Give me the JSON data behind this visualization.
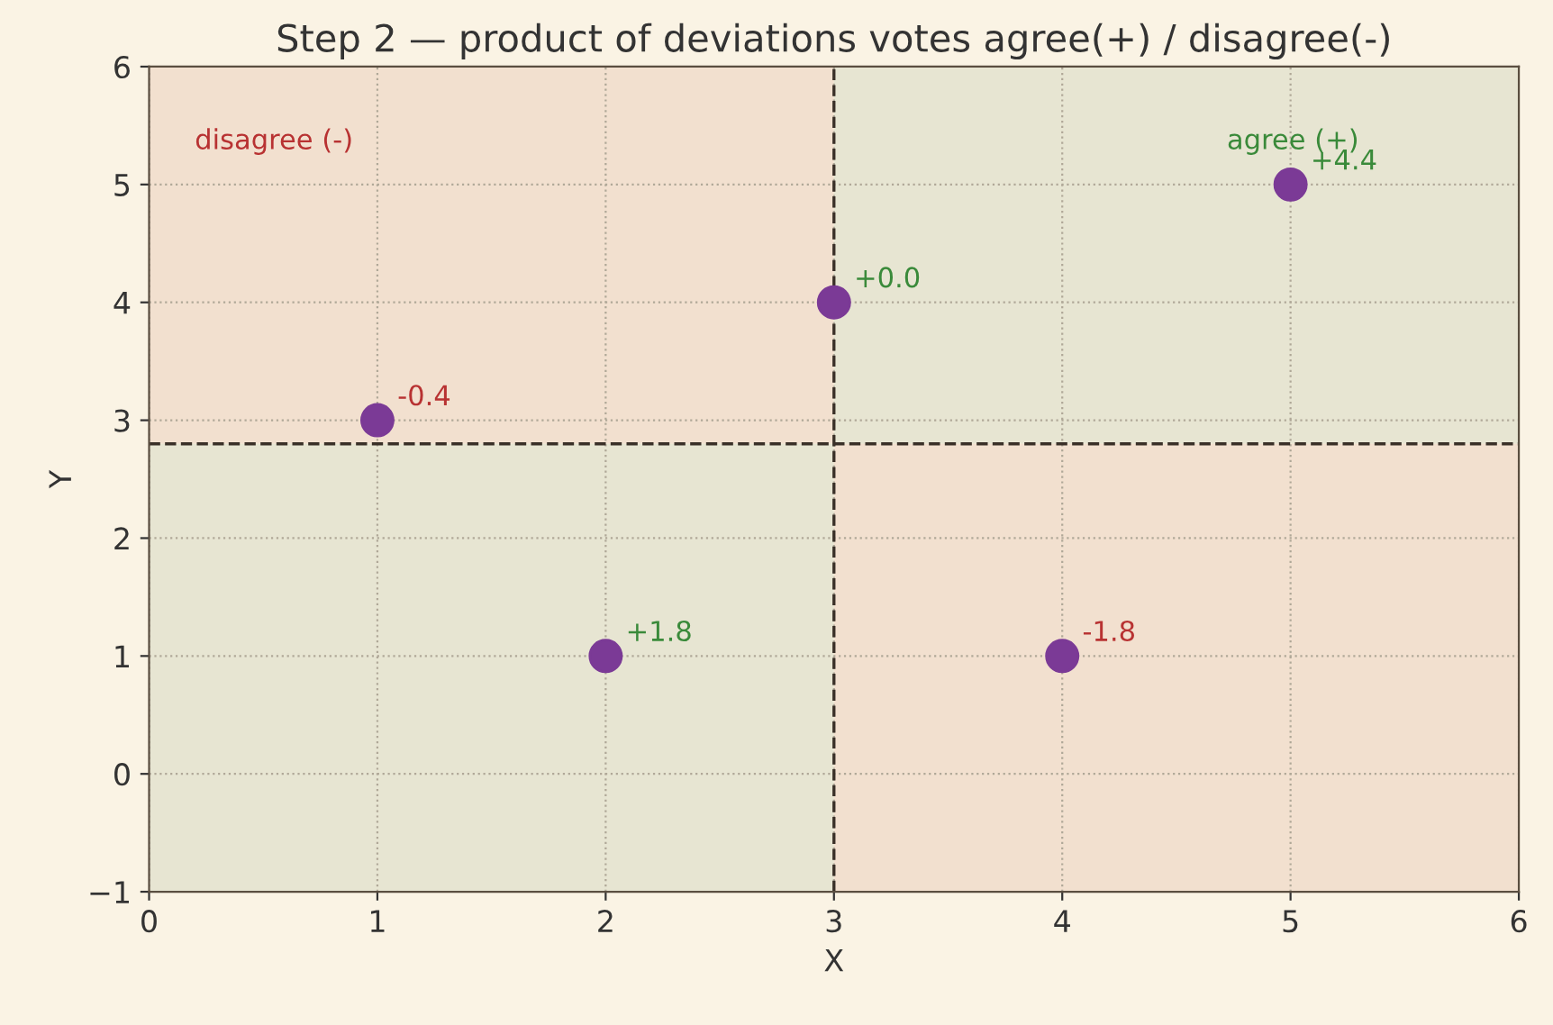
{
  "chart_data": {
    "type": "scatter",
    "title": "Step 2 — product of deviations votes agree(+) / disagree(-)",
    "xlabel": "X",
    "ylabel": "Y",
    "x": [
      1,
      2,
      3,
      4,
      5
    ],
    "series": [
      {
        "color": "#7b3a96",
        "values": [
          3,
          1,
          4,
          1,
          5
        ]
      }
    ],
    "marker": "circle",
    "xlim": [
      0,
      6
    ],
    "ylim": [
      -1,
      6
    ],
    "xticks": [
      0,
      1,
      2,
      3,
      4,
      5,
      6
    ],
    "yticks": [
      {
        "value": -1,
        "label": "−1"
      },
      0,
      1,
      2,
      3,
      4,
      5,
      6
    ],
    "grid": true,
    "ref_lines": [
      {
        "axis": "x",
        "value": 3,
        "color": "#3a3028",
        "line_style": "dashed"
      },
      {
        "axis": "y",
        "value": 2.8,
        "color": "#3a3028",
        "line_style": "dashed"
      }
    ],
    "annotations": [
      "disagree (-)",
      "agree (+)",
      {
        "text": "-0.4",
        "x": 1,
        "y": 3
      },
      {
        "text": "+1.8",
        "x": 2,
        "y": 1
      },
      {
        "text": "+0.0",
        "x": 3,
        "y": 4
      },
      {
        "text": "-1.8",
        "x": 4,
        "y": 1
      },
      {
        "text": "+4.4",
        "x": 5,
        "y": 5
      }
    ]
  }
}
